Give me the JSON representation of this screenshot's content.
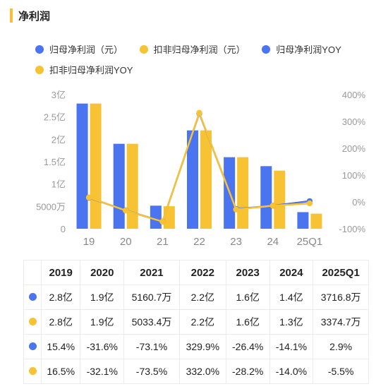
{
  "header": {
    "title": "净利润"
  },
  "colors": {
    "blue": "#4a74f0",
    "yellow": "#f7c233"
  },
  "legend": [
    {
      "label": "归母净利润（元）",
      "color": "#4a74f0"
    },
    {
      "label": "扣非归母净利润（元）",
      "color": "#f7c233"
    },
    {
      "label": "归母净利润YOY",
      "color": "#4a74f0"
    },
    {
      "label": "扣非归母净利润YOY",
      "color": "#f7c233"
    }
  ],
  "chart_data": {
    "type": "bar",
    "categories": [
      "19",
      "20",
      "21",
      "22",
      "23",
      "24",
      "25Q1"
    ],
    "series": [
      {
        "name": "归母净利润（元）",
        "type": "bar",
        "axis": "left",
        "values": [
          28000,
          19000,
          5160.7,
          22000,
          16000,
          14000,
          3716.8
        ],
        "unit": "万"
      },
      {
        "name": "扣非归母净利润（元）",
        "type": "bar",
        "axis": "left",
        "values": [
          28000,
          19000,
          5033.4,
          22000,
          16000,
          13000,
          3374.7
        ],
        "unit": "万"
      },
      {
        "name": "归母净利润YOY",
        "type": "line",
        "axis": "right",
        "values": [
          15.4,
          -31.6,
          -73.1,
          329.9,
          -26.4,
          -14.1,
          2.9
        ],
        "unit": "%"
      },
      {
        "name": "扣非归母净利润YOY",
        "type": "line",
        "axis": "right",
        "values": [
          16.5,
          -32.1,
          -73.5,
          332.0,
          -28.2,
          -14.0,
          -5.5
        ],
        "unit": "%"
      }
    ],
    "left_axis": {
      "ylim": [
        0,
        30000
      ],
      "ticks": [
        0,
        5000,
        10000,
        15000,
        20000,
        25000,
        30000
      ],
      "tick_labels": [
        "0",
        "5000万",
        "1亿",
        "1.5亿",
        "2亿",
        "2.5亿",
        "3亿"
      ]
    },
    "right_axis": {
      "ylim": [
        -100,
        400
      ],
      "ticks": [
        -100,
        0,
        100,
        200,
        300,
        400
      ],
      "tick_labels": [
        "-100%",
        "0%",
        "100%",
        "200%",
        "300%",
        "400%"
      ]
    },
    "grid": false
  },
  "table": {
    "headers": [
      "2019",
      "2020",
      "2021",
      "2022",
      "2023",
      "2024",
      "2025Q1"
    ],
    "rows": [
      {
        "color": "#4a74f0",
        "cells": [
          "2.8亿",
          "1.9亿",
          "5160.7万",
          "2.2亿",
          "1.6亿",
          "1.4亿",
          "3716.8万"
        ]
      },
      {
        "color": "#f7c233",
        "cells": [
          "2.8亿",
          "1.9亿",
          "5033.4万",
          "2.2亿",
          "1.6亿",
          "1.3亿",
          "3374.7万"
        ]
      },
      {
        "color": "#4a74f0",
        "cells": [
          "15.4%",
          "-31.6%",
          "-73.1%",
          "329.9%",
          "-26.4%",
          "-14.1%",
          "2.9%"
        ]
      },
      {
        "color": "#f7c233",
        "cells": [
          "16.5%",
          "-32.1%",
          "-73.5%",
          "332.0%",
          "-28.2%",
          "-14.0%",
          "-5.5%"
        ]
      }
    ]
  }
}
